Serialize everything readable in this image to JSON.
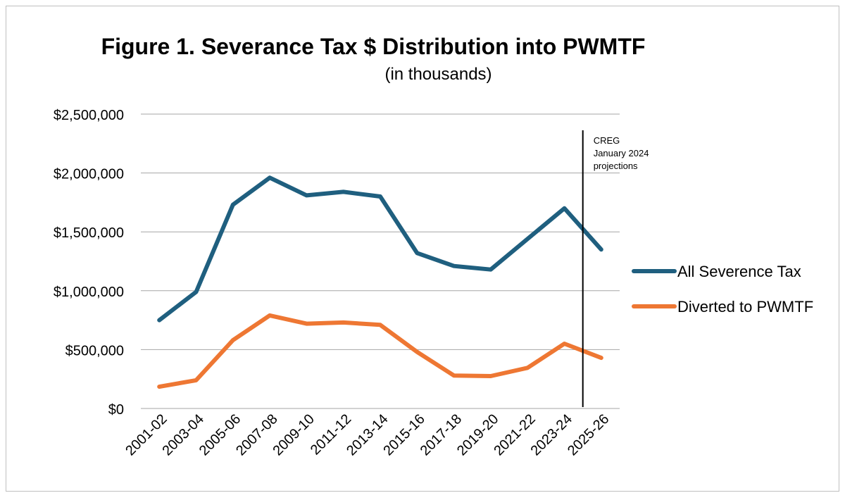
{
  "chart_data": {
    "type": "line",
    "title": "Figure 1. Severance Tax $ Distribution into PWMTF",
    "subtitle": "(in thousands)",
    "categories": [
      "2001-02",
      "2003-04",
      "2005-06",
      "2007-08",
      "2009-10",
      "2011-12",
      "2013-14",
      "2015-16",
      "2017-18",
      "2019-20",
      "2021-22",
      "2023-24",
      "2025-26"
    ],
    "y_ticks": [
      "$0",
      "$500,000",
      "$1,000,000",
      "$1,500,000",
      "$2,000,000",
      "$2,500,000"
    ],
    "ylim": [
      0,
      2500000
    ],
    "grid": true,
    "legend_position": "right",
    "series": [
      {
        "name": "All Severence Tax",
        "color": "#1f5f7f",
        "values": [
          750000,
          990000,
          1730000,
          1960000,
          1810000,
          1840000,
          1800000,
          1320000,
          1210000,
          1180000,
          1440000,
          1700000,
          1350000
        ]
      },
      {
        "name": "Diverted to PWMTF",
        "color": "#ee7733",
        "values": [
          185000,
          240000,
          580000,
          790000,
          720000,
          730000,
          710000,
          480000,
          280000,
          275000,
          345000,
          550000,
          430000
        ]
      }
    ],
    "annotation": {
      "category_position": 11.5,
      "lines": [
        "CREG",
        "January 2024",
        "projections"
      ]
    }
  }
}
